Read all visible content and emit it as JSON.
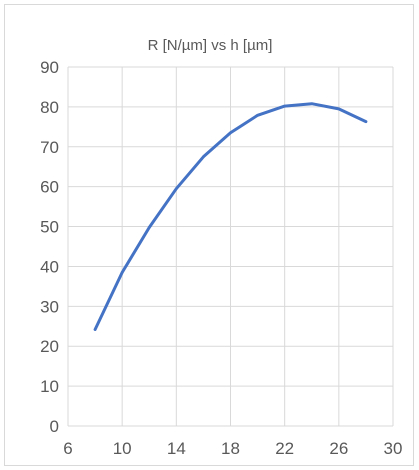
{
  "chart_data": {
    "type": "line",
    "title": "R [N/µm] vs h [µm]",
    "xlabel": "",
    "ylabel": "",
    "xlim": [
      6,
      30
    ],
    "ylim": [
      0,
      90
    ],
    "x_ticks": [
      6,
      10,
      14,
      18,
      22,
      26,
      30
    ],
    "y_ticks": [
      0,
      10,
      20,
      30,
      40,
      50,
      60,
      70,
      80,
      90
    ],
    "grid": "horizontal and vertical gridlines",
    "legend": "none",
    "series": [
      {
        "color": "#4472c4",
        "x": [
          8,
          10,
          12,
          14,
          16,
          18,
          20,
          22,
          24,
          26,
          28
        ],
        "y": [
          24.2,
          38.5,
          49.8,
          59.5,
          67.5,
          73.5,
          77.9,
          80.2,
          80.8,
          79.5,
          76.3
        ]
      }
    ]
  }
}
